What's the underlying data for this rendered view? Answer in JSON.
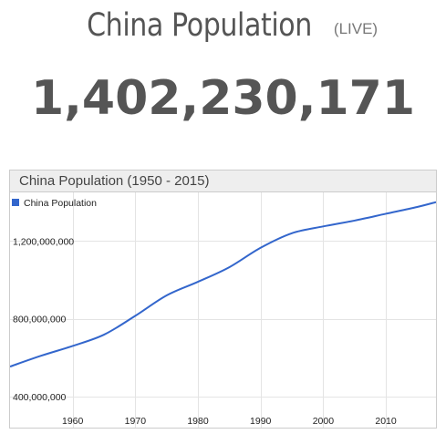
{
  "header": {
    "title": "China Population",
    "live_badge": "(LIVE)",
    "live_count": "1,402,230,171"
  },
  "chart_data": {
    "type": "line",
    "title": "China Population (1950 - 2015)",
    "xlabel": "",
    "ylabel": "",
    "xlim": [
      1950,
      2018
    ],
    "ylim": [
      240000000,
      1450000000
    ],
    "x_ticks": [
      1960,
      1970,
      1980,
      1990,
      2000,
      2010
    ],
    "x_tick_labels": [
      "1960",
      "1970",
      "1980",
      "1990",
      "2000",
      "2010"
    ],
    "y_ticks": [
      400000000,
      800000000,
      1200000000
    ],
    "y_tick_labels": [
      "400,000,000",
      "800,000,000",
      "1,200,000,000"
    ],
    "grid": true,
    "legend": "top-left",
    "series": [
      {
        "name": "China Population",
        "color": "#3366cc",
        "x": [
          1950,
          1955,
          1960,
          1965,
          1970,
          1975,
          1980,
          1985,
          1990,
          1995,
          2000,
          2005,
          2010,
          2015,
          2018
        ],
        "y": [
          554000000,
          610000000,
          660000000,
          718000000,
          815000000,
          920000000,
          990000000,
          1065000000,
          1165000000,
          1240000000,
          1275000000,
          1305000000,
          1340000000,
          1375000000,
          1400000000
        ]
      }
    ]
  }
}
